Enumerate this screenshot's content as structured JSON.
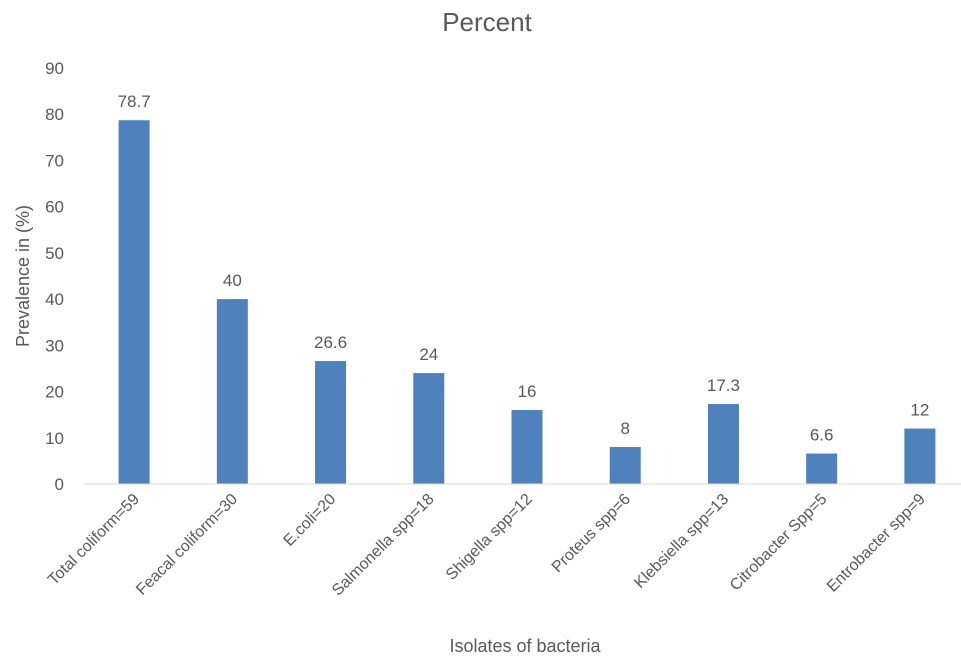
{
  "chart_data": {
    "type": "bar",
    "title": "Percent",
    "xlabel": "Isolates of bacteria",
    "ylabel": "Prevalence in (%)",
    "ylim": [
      0,
      90
    ],
    "yticks": [
      0,
      10,
      20,
      30,
      40,
      50,
      60,
      70,
      80,
      90
    ],
    "grid": false,
    "legend": "none",
    "bar_color": "#4f81bd",
    "categories": [
      "Total coliform=59",
      "Feacal coliform=30",
      "E.coli=20",
      "Salmonella spp=18",
      "Shigella spp=12",
      "Proteus spp=6",
      "Klebsiella spp=13",
      "Citrobacter Spp=5",
      "Entrobacter spp=9"
    ],
    "values": [
      78.7,
      40,
      26.6,
      24,
      16,
      8,
      17.3,
      6.6,
      12
    ],
    "data_labels": [
      "78.7",
      "40",
      "26.6",
      "24",
      "16",
      "8",
      "17.3",
      "6.6",
      "12"
    ]
  }
}
